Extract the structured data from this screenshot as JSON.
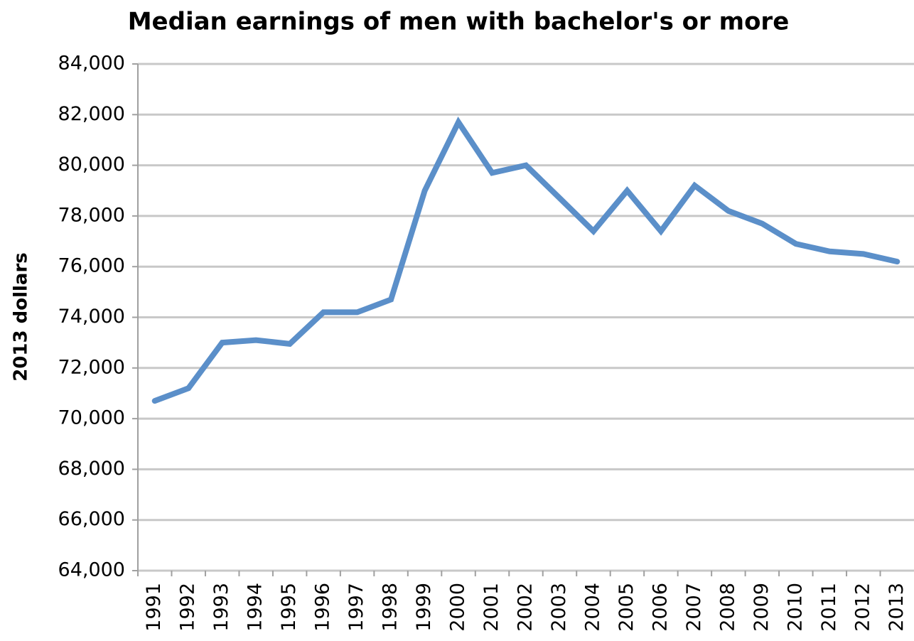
{
  "chart_data": {
    "type": "line",
    "title": "Median earnings of men with bachelor's or more",
    "ylabel": "2013 dollars",
    "categories": [
      "1991",
      "1992",
      "1993",
      "1994",
      "1995",
      "1996",
      "1997",
      "1998",
      "1999",
      "2000",
      "2001",
      "2002",
      "2003",
      "2004",
      "2005",
      "2006",
      "2007",
      "2008",
      "2009",
      "2010",
      "2011",
      "2012",
      "2013"
    ],
    "series": [
      {
        "name": "Median earnings",
        "color": "#5b8fc9",
        "values": [
          70700,
          71200,
          73000,
          73100,
          72950,
          74200,
          74200,
          74700,
          79000,
          81700,
          79700,
          80000,
          78700,
          77400,
          79000,
          77400,
          79200,
          78200,
          77700,
          76900,
          76600,
          76500,
          76200
        ]
      }
    ],
    "ylim": [
      64000,
      84000
    ],
    "yticks": [
      {
        "value": 64000,
        "label": "64,000"
      },
      {
        "value": 66000,
        "label": "66,000"
      },
      {
        "value": 68000,
        "label": "68,000"
      },
      {
        "value": 70000,
        "label": "70,000"
      },
      {
        "value": 72000,
        "label": "72,000"
      },
      {
        "value": 74000,
        "label": "74,000"
      },
      {
        "value": 76000,
        "label": "76,000"
      },
      {
        "value": 78000,
        "label": "78,000"
      },
      {
        "value": 80000,
        "label": "80,000"
      },
      {
        "value": 82000,
        "label": "82,000"
      },
      {
        "value": 84000,
        "label": "84,000"
      }
    ],
    "grid": true
  }
}
